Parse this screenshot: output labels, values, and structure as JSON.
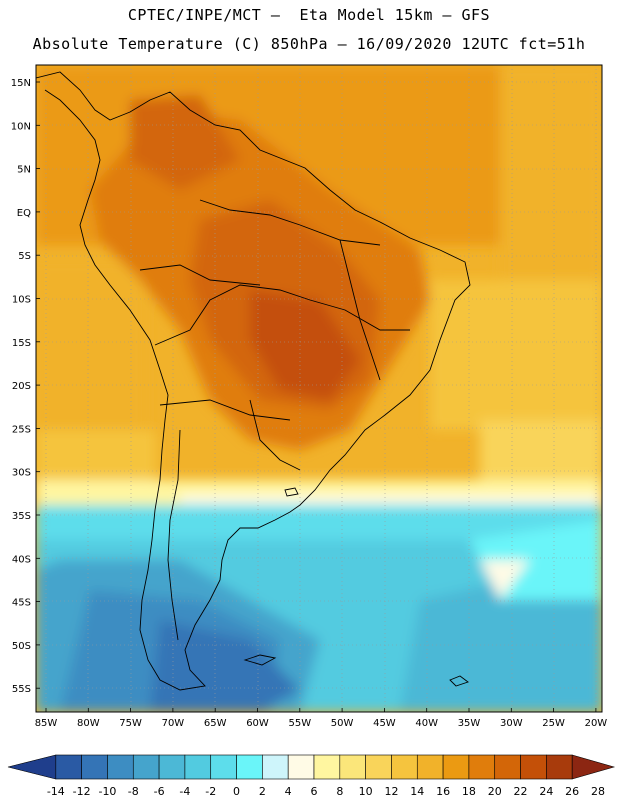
{
  "header": {
    "line1": "CPTEC/INPE/MCT –  Eta Model 15km – GFS",
    "line2": "Absolute Temperature (C) 850hPa – 16/09/2020 12UTC fct=51h"
  },
  "map": {
    "lat_labels": [
      "15N",
      "10N",
      "5N",
      "EQ",
      "5S",
      "10S",
      "15S",
      "20S",
      "25S",
      "30S",
      "35S",
      "40S",
      "45S",
      "50S",
      "55S"
    ],
    "lon_labels": [
      "85W",
      "80W",
      "75W",
      "70W",
      "65W",
      "60W",
      "55W",
      "50W",
      "45W",
      "40W",
      "35W",
      "30W",
      "25W",
      "20W"
    ]
  },
  "colorbar": {
    "labels": [
      "-14",
      "-12",
      "-10",
      "-8",
      "-6",
      "-4",
      "-2",
      "0",
      "2",
      "4",
      "6",
      "8",
      "10",
      "12",
      "14",
      "16",
      "18",
      "20",
      "22",
      "24",
      "26",
      "28"
    ],
    "colors": [
      "#1f3e8c",
      "#2a5aa4",
      "#3474b6",
      "#3d8dc2",
      "#45a4cc",
      "#4cb8d6",
      "#52cbe0",
      "#5dddeb",
      "#6af5f9",
      "#cef5fb",
      "#fffbe6",
      "#fff6a0",
      "#fbe67a",
      "#f9d45a",
      "#f5c43e",
      "#f1b22a",
      "#eb9a12",
      "#e07d0c",
      "#d36608",
      "#c45008",
      "#a83b0c",
      "#8c2612"
    ]
  }
}
